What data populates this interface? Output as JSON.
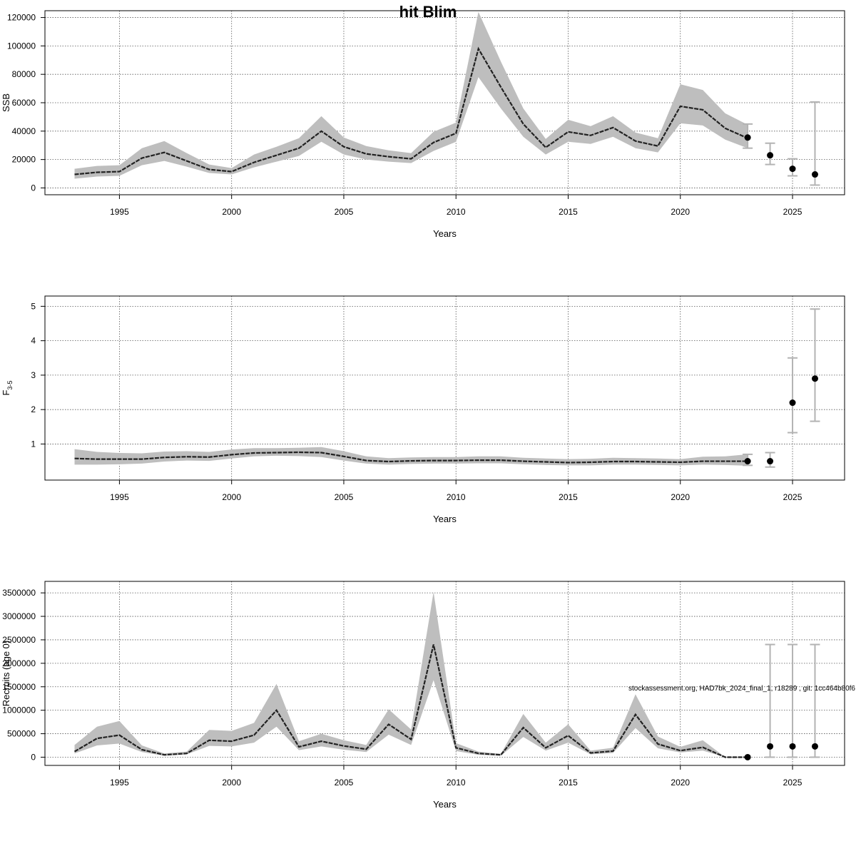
{
  "title": "hit Blim",
  "credit": "stockassessment.org, HAD7bk_2024_final_1, r18289 , git: 1cc464b80f6",
  "colors": {
    "band": "#bebebe",
    "line": "#222222",
    "errorbar": "#b3b3b3",
    "point": "#000000",
    "grid": "#555555"
  },
  "chart_data": [
    {
      "type": "line",
      "id": "ssb",
      "xlabel": "Years",
      "ylabel": "SSB",
      "xlim": [
        1993,
        2026
      ],
      "ylim": [
        0,
        120000
      ],
      "xticks": [
        1995,
        2000,
        2005,
        2010,
        2015,
        2020,
        2025
      ],
      "yticks": [
        0,
        20000,
        40000,
        60000,
        80000,
        100000,
        120000
      ],
      "grid": true,
      "x": [
        1993,
        1994,
        1995,
        1996,
        1997,
        1998,
        1999,
        2000,
        2001,
        2002,
        2003,
        2004,
        2005,
        2006,
        2007,
        2008,
        2009,
        2010,
        2011,
        2012,
        2013,
        2014,
        2015,
        2016,
        2017,
        2018,
        2019,
        2020,
        2021,
        2022,
        2023
      ],
      "estimate": [
        9500,
        11000,
        11500,
        21000,
        25000,
        19000,
        13000,
        11500,
        18000,
        23000,
        28000,
        40000,
        29000,
        24000,
        22000,
        20500,
        32000,
        38500,
        98000,
        71000,
        45000,
        28500,
        39500,
        37000,
        42500,
        33000,
        29500,
        57500,
        55000,
        42000,
        35000
      ],
      "lower": [
        6500,
        8000,
        8500,
        16000,
        19000,
        15000,
        10500,
        9500,
        14500,
        18500,
        22500,
        32500,
        23500,
        20000,
        18500,
        17500,
        26000,
        32500,
        78000,
        56000,
        36000,
        23500,
        32500,
        31000,
        36000,
        28000,
        25000,
        45500,
        44000,
        34000,
        28000
      ],
      "upper": [
        13500,
        15500,
        16000,
        28000,
        33000,
        24500,
        16500,
        14000,
        23500,
        29000,
        35000,
        50500,
        35500,
        29500,
        26500,
        24500,
        39500,
        46000,
        124000,
        89000,
        56000,
        34500,
        48000,
        43500,
        50500,
        39000,
        35000,
        73000,
        69000,
        52500,
        44500
      ],
      "forecast": [
        {
          "year": 2023,
          "median": 35500,
          "low": 28000,
          "high": 45000
        },
        {
          "year": 2024,
          "median": 23000,
          "low": 16500,
          "high": 31500
        },
        {
          "year": 2025,
          "median": 13500,
          "low": 8500,
          "high": 20500
        },
        {
          "year": 2026,
          "median": 9500,
          "low": 2000,
          "high": 60500
        }
      ]
    },
    {
      "type": "line",
      "id": "fbar",
      "xlabel": "Years",
      "ylabel": "F",
      "ylabel_sub": "3-5",
      "xlim": [
        1993,
        2026
      ],
      "ylim": [
        0.15,
        5.1
      ],
      "xticks": [
        1995,
        2000,
        2005,
        2010,
        2015,
        2020,
        2025
      ],
      "yticks": [
        1,
        2,
        3,
        4,
        5
      ],
      "grid": true,
      "x": [
        1993,
        1994,
        1995,
        1996,
        1997,
        1998,
        1999,
        2000,
        2001,
        2002,
        2003,
        2004,
        2005,
        2006,
        2007,
        2008,
        2009,
        2010,
        2011,
        2012,
        2013,
        2014,
        2015,
        2016,
        2017,
        2018,
        2019,
        2020,
        2021,
        2022,
        2023
      ],
      "estimate": [
        0.58,
        0.56,
        0.56,
        0.56,
        0.61,
        0.63,
        0.62,
        0.69,
        0.74,
        0.75,
        0.76,
        0.75,
        0.64,
        0.52,
        0.49,
        0.51,
        0.52,
        0.52,
        0.53,
        0.53,
        0.5,
        0.48,
        0.46,
        0.47,
        0.49,
        0.49,
        0.48,
        0.47,
        0.5,
        0.5,
        0.5
      ],
      "lower": [
        0.4,
        0.4,
        0.41,
        0.43,
        0.49,
        0.52,
        0.51,
        0.58,
        0.64,
        0.66,
        0.65,
        0.62,
        0.52,
        0.43,
        0.4,
        0.42,
        0.43,
        0.43,
        0.44,
        0.44,
        0.41,
        0.39,
        0.38,
        0.38,
        0.4,
        0.4,
        0.39,
        0.38,
        0.4,
        0.39,
        0.37
      ],
      "upper": [
        0.85,
        0.77,
        0.74,
        0.73,
        0.78,
        0.79,
        0.77,
        0.84,
        0.88,
        0.88,
        0.89,
        0.91,
        0.79,
        0.64,
        0.59,
        0.61,
        0.62,
        0.62,
        0.64,
        0.64,
        0.6,
        0.58,
        0.56,
        0.57,
        0.6,
        0.59,
        0.58,
        0.56,
        0.63,
        0.64,
        0.7
      ],
      "forecast": [
        {
          "year": 2023,
          "median": 0.5,
          "low": 0.38,
          "high": 0.7
        },
        {
          "year": 2024,
          "median": 0.5,
          "low": 0.33,
          "high": 0.75
        },
        {
          "year": 2025,
          "median": 2.2,
          "low": 1.33,
          "high": 3.5
        },
        {
          "year": 2026,
          "median": 2.9,
          "low": 1.66,
          "high": 4.92
        }
      ]
    },
    {
      "type": "line",
      "id": "recruits",
      "xlabel": "Years",
      "ylabel": "Recruits (age 0)",
      "xlim": [
        1993,
        2026
      ],
      "ylim": [
        -30000,
        3600000
      ],
      "xticks": [
        1995,
        2000,
        2005,
        2010,
        2015,
        2020,
        2025
      ],
      "yticks": [
        0,
        500000,
        1000000,
        1500000,
        2000000,
        2500000,
        3000000,
        3500000
      ],
      "grid": true,
      "x": [
        1993,
        1994,
        1995,
        1996,
        1997,
        1998,
        1999,
        2000,
        2001,
        2002,
        2003,
        2004,
        2005,
        2006,
        2007,
        2008,
        2009,
        2010,
        2011,
        2012,
        2013,
        2014,
        2015,
        2016,
        2017,
        2018,
        2019,
        2020,
        2021,
        2022,
        2023
      ],
      "estimate": [
        120000,
        400000,
        470000,
        160000,
        50000,
        80000,
        360000,
        340000,
        470000,
        1000000,
        220000,
        340000,
        240000,
        170000,
        700000,
        380000,
        2400000,
        200000,
        80000,
        50000,
        630000,
        200000,
        460000,
        90000,
        130000,
        910000,
        280000,
        140000,
        210000,
        0,
        0
      ],
      "lower": [
        80000,
        250000,
        290000,
        110000,
        30000,
        60000,
        240000,
        230000,
        310000,
        650000,
        150000,
        230000,
        160000,
        110000,
        480000,
        260000,
        1640000,
        130000,
        50000,
        30000,
        430000,
        140000,
        310000,
        60000,
        90000,
        620000,
        190000,
        100000,
        140000,
        0,
        0
      ],
      "upper": [
        260000,
        650000,
        770000,
        250000,
        80000,
        120000,
        580000,
        560000,
        730000,
        1560000,
        340000,
        500000,
        360000,
        260000,
        1020000,
        590000,
        3520000,
        300000,
        120000,
        70000,
        920000,
        310000,
        700000,
        140000,
        200000,
        1340000,
        440000,
        220000,
        360000,
        0,
        0
      ],
      "forecast": [
        {
          "year": 2023,
          "median": 0,
          "low": 0,
          "high": 0
        },
        {
          "year": 2024,
          "median": 230000,
          "low": 0,
          "high": 2400000
        },
        {
          "year": 2025,
          "median": 230000,
          "low": 0,
          "high": 2400000
        },
        {
          "year": 2026,
          "median": 230000,
          "low": 0,
          "high": 2400000
        }
      ]
    }
  ]
}
